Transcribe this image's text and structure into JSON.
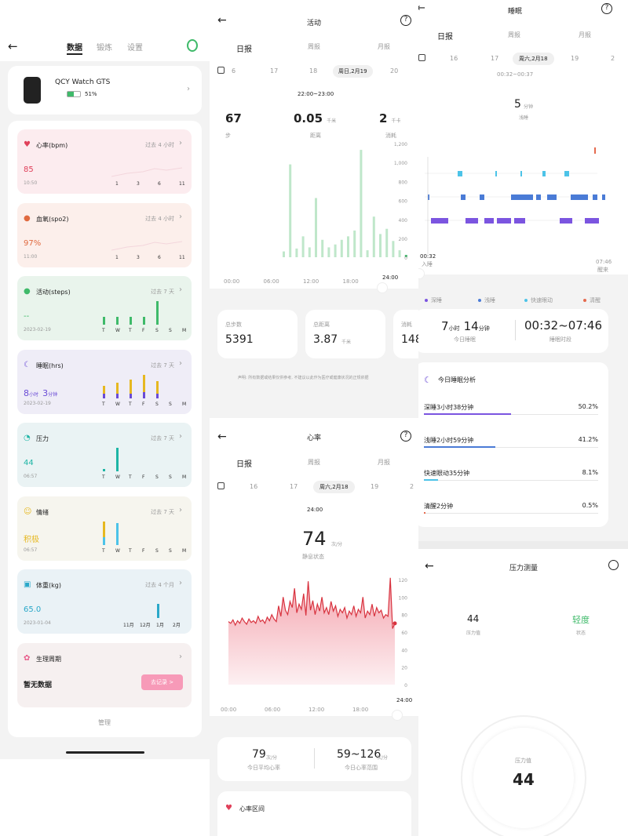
{
  "device_panel": {
    "tabs": [
      "数据",
      "锻炼",
      "设置"
    ],
    "device": {
      "name": "QCY Watch GTS",
      "battery": "51%"
    },
    "cards": [
      {
        "id": "heart",
        "title": "心率(bpm)",
        "period": "过去 4 小时",
        "value": "85",
        "date": "10:50",
        "x": [
          "1",
          "3",
          "6",
          "11"
        ],
        "color": "#e0405a",
        "bg": "#fcecef"
      },
      {
        "id": "spo2",
        "title": "血氧(spo2)",
        "period": "过去 4 小时",
        "value": "97%",
        "date": "11:00",
        "x": [
          "1",
          "3",
          "6",
          "11"
        ],
        "color": "#e06a40",
        "bg": "#fcefeb"
      },
      {
        "id": "steps",
        "title": "活动(steps)",
        "period": "过去 7 天",
        "value": "--",
        "date": "2023-02-19",
        "x": [
          "T",
          "W",
          "T",
          "F",
          "S",
          "S",
          "M"
        ],
        "color": "#3fba6a",
        "bg": "#e9f4ec"
      },
      {
        "id": "sleep",
        "title": "睡眠(hrs)",
        "period": "过去 7 天",
        "value_h": "8",
        "unit_h": "小时",
        "value_m": "3",
        "unit_m": "分钟",
        "date": "2023-02-19",
        "x": [
          "T",
          "W",
          "T",
          "F",
          "S",
          "S",
          "M"
        ],
        "color": "#6a4bd6",
        "bg": "#efedf7"
      },
      {
        "id": "stress",
        "title": "压力",
        "period": "过去 7 天",
        "value": "44",
        "date": "06:57",
        "x": [
          "T",
          "W",
          "T",
          "F",
          "S",
          "S",
          "M"
        ],
        "color": "#1db5a5",
        "bg": "#eaf3f4"
      },
      {
        "id": "mood",
        "title": "情绪",
        "period": "过去 7 天",
        "value": "积极",
        "date": "06:57",
        "x": [
          "T",
          "W",
          "T",
          "F",
          "S",
          "S",
          "M"
        ],
        "color": "#e6b820",
        "bg": "#f6f5ee"
      },
      {
        "id": "weight",
        "title": "体重(kg)",
        "period": "过去 4 个月",
        "value": "65.0",
        "date": "2023-01-04",
        "x": [
          "11月",
          "12月",
          "1月",
          "2月"
        ],
        "color": "#2aa8c9",
        "bg": "#eaf2f6"
      },
      {
        "id": "period",
        "title": "生理周期",
        "value": "暂无数据",
        "button": "去记录 >",
        "color": "#e85b8a",
        "bg": "#f6f0f0"
      }
    ],
    "manage": "管理"
  },
  "activity_panel": {
    "title": "活动",
    "tabs": [
      "日报",
      "周报",
      "月报"
    ],
    "days": [
      "6",
      "17",
      "18",
      "周日,2月19",
      "20"
    ],
    "time_range": "22:00~23:00",
    "stats": [
      {
        "value": "67",
        "unit": "",
        "label": "步"
      },
      {
        "value": "0.05",
        "unit": "千米",
        "label": "距离"
      },
      {
        "value": "2",
        "unit": "千卡",
        "label": "消耗"
      }
    ],
    "yticks": [
      "1,200",
      "1,000",
      "800",
      "600",
      "400",
      "200",
      "0"
    ],
    "xticks": [
      "00:00",
      "06:00",
      "12:00",
      "18:00",
      "24:00"
    ],
    "summary": [
      {
        "label": "总步数",
        "value": "5391",
        "unit": ""
      },
      {
        "label": "总距离",
        "value": "3.87",
        "unit": "千米"
      },
      {
        "label": "消耗",
        "value": "148",
        "unit": ""
      }
    ],
    "disclaimer": "声明: 所有数据或结果仅供参考, 不建议以此作为医疗或健康状况的正规依据"
  },
  "sleep_panel": {
    "title": "睡眠",
    "tabs": [
      "日报",
      "周报",
      "月报"
    ],
    "days": [
      "16",
      "17",
      "周六,2月18",
      "19",
      "2"
    ],
    "time_range": "00:32~00:37",
    "duration_value": "5",
    "duration_unit": "分钟",
    "stage": "浅睡",
    "start_time": "00:32",
    "start_label": "入睡",
    "end_time": "07:46",
    "end_label": "醒来",
    "legend": [
      {
        "label": "深睡",
        "color": "#7b55e0"
      },
      {
        "label": "浅睡",
        "color": "#4a7bd6"
      },
      {
        "label": "快速眼动",
        "color": "#4cc3e8"
      },
      {
        "label": "清醒",
        "color": "#e56a4e"
      }
    ],
    "total_h": "7",
    "total_m": "14",
    "unit_h": "小时",
    "unit_m": "分钟",
    "total_label": "今日睡眠",
    "period": "00:32~07:46",
    "period_label": "睡眠时段",
    "analysis_title": "今日睡眠分析",
    "analysis": [
      {
        "label": "深睡3小时38分钟",
        "pct": "50.2%",
        "fill": 0.502,
        "color": "#7b55e0"
      },
      {
        "label": "浅睡2小时59分钟",
        "pct": "41.2%",
        "fill": 0.412,
        "color": "#4a7bd6"
      },
      {
        "label": "快速眼动35分钟",
        "pct": "8.1%",
        "fill": 0.081,
        "color": "#4cc3e8"
      },
      {
        "label": "清醒2分钟",
        "pct": "0.5%",
        "fill": 0.005,
        "color": "#e56a4e"
      }
    ]
  },
  "heart_panel": {
    "title": "心率",
    "tabs": [
      "日报",
      "周报",
      "月报"
    ],
    "days": [
      "16",
      "17",
      "周六,2月18",
      "19",
      "2"
    ],
    "time": "24:00",
    "value": "74",
    "unit": "次/分",
    "state": "静息状态",
    "yticks": [
      "120",
      "100",
      "80",
      "60",
      "40",
      "20",
      "0"
    ],
    "xticks": [
      "00:00",
      "06:00",
      "12:00",
      "18:00",
      "24:00"
    ],
    "avg_value": "79",
    "avg_unit": "次/分",
    "avg_label": "今日平均心率",
    "range_value": "59~126",
    "range_unit": "次/分",
    "range_label": "今日心率范围",
    "zone_title": "心率区间"
  },
  "stress_panel": {
    "title": "压力测量",
    "value": "44",
    "value_label": "压力值",
    "state": "轻度",
    "state_label": "状态",
    "gauge_label": "压力值",
    "gauge_value": "44"
  }
}
